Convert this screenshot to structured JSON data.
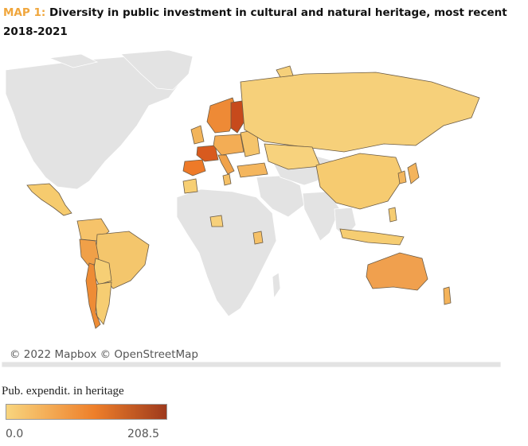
{
  "title": {
    "prefix": "MAP 1:",
    "text": "Diversity in public investment in cultural and natural heritage, most recent 2018-2021"
  },
  "map": {
    "attribution": "© 2022 Mapbox © OpenStreetMap",
    "no_data_color": "#e3e3e3",
    "border_color": "#ffffff",
    "highlight_border_color": "#6b5b45"
  },
  "legend": {
    "title": "Pub. expendit. in heritage",
    "min_label": "0.0",
    "max_label": "208.5",
    "min": 0.0,
    "max": 208.5,
    "color_low": "#f8d57e",
    "color_mid": "#ee7f2a",
    "color_high": "#9e3a1d"
  }
}
